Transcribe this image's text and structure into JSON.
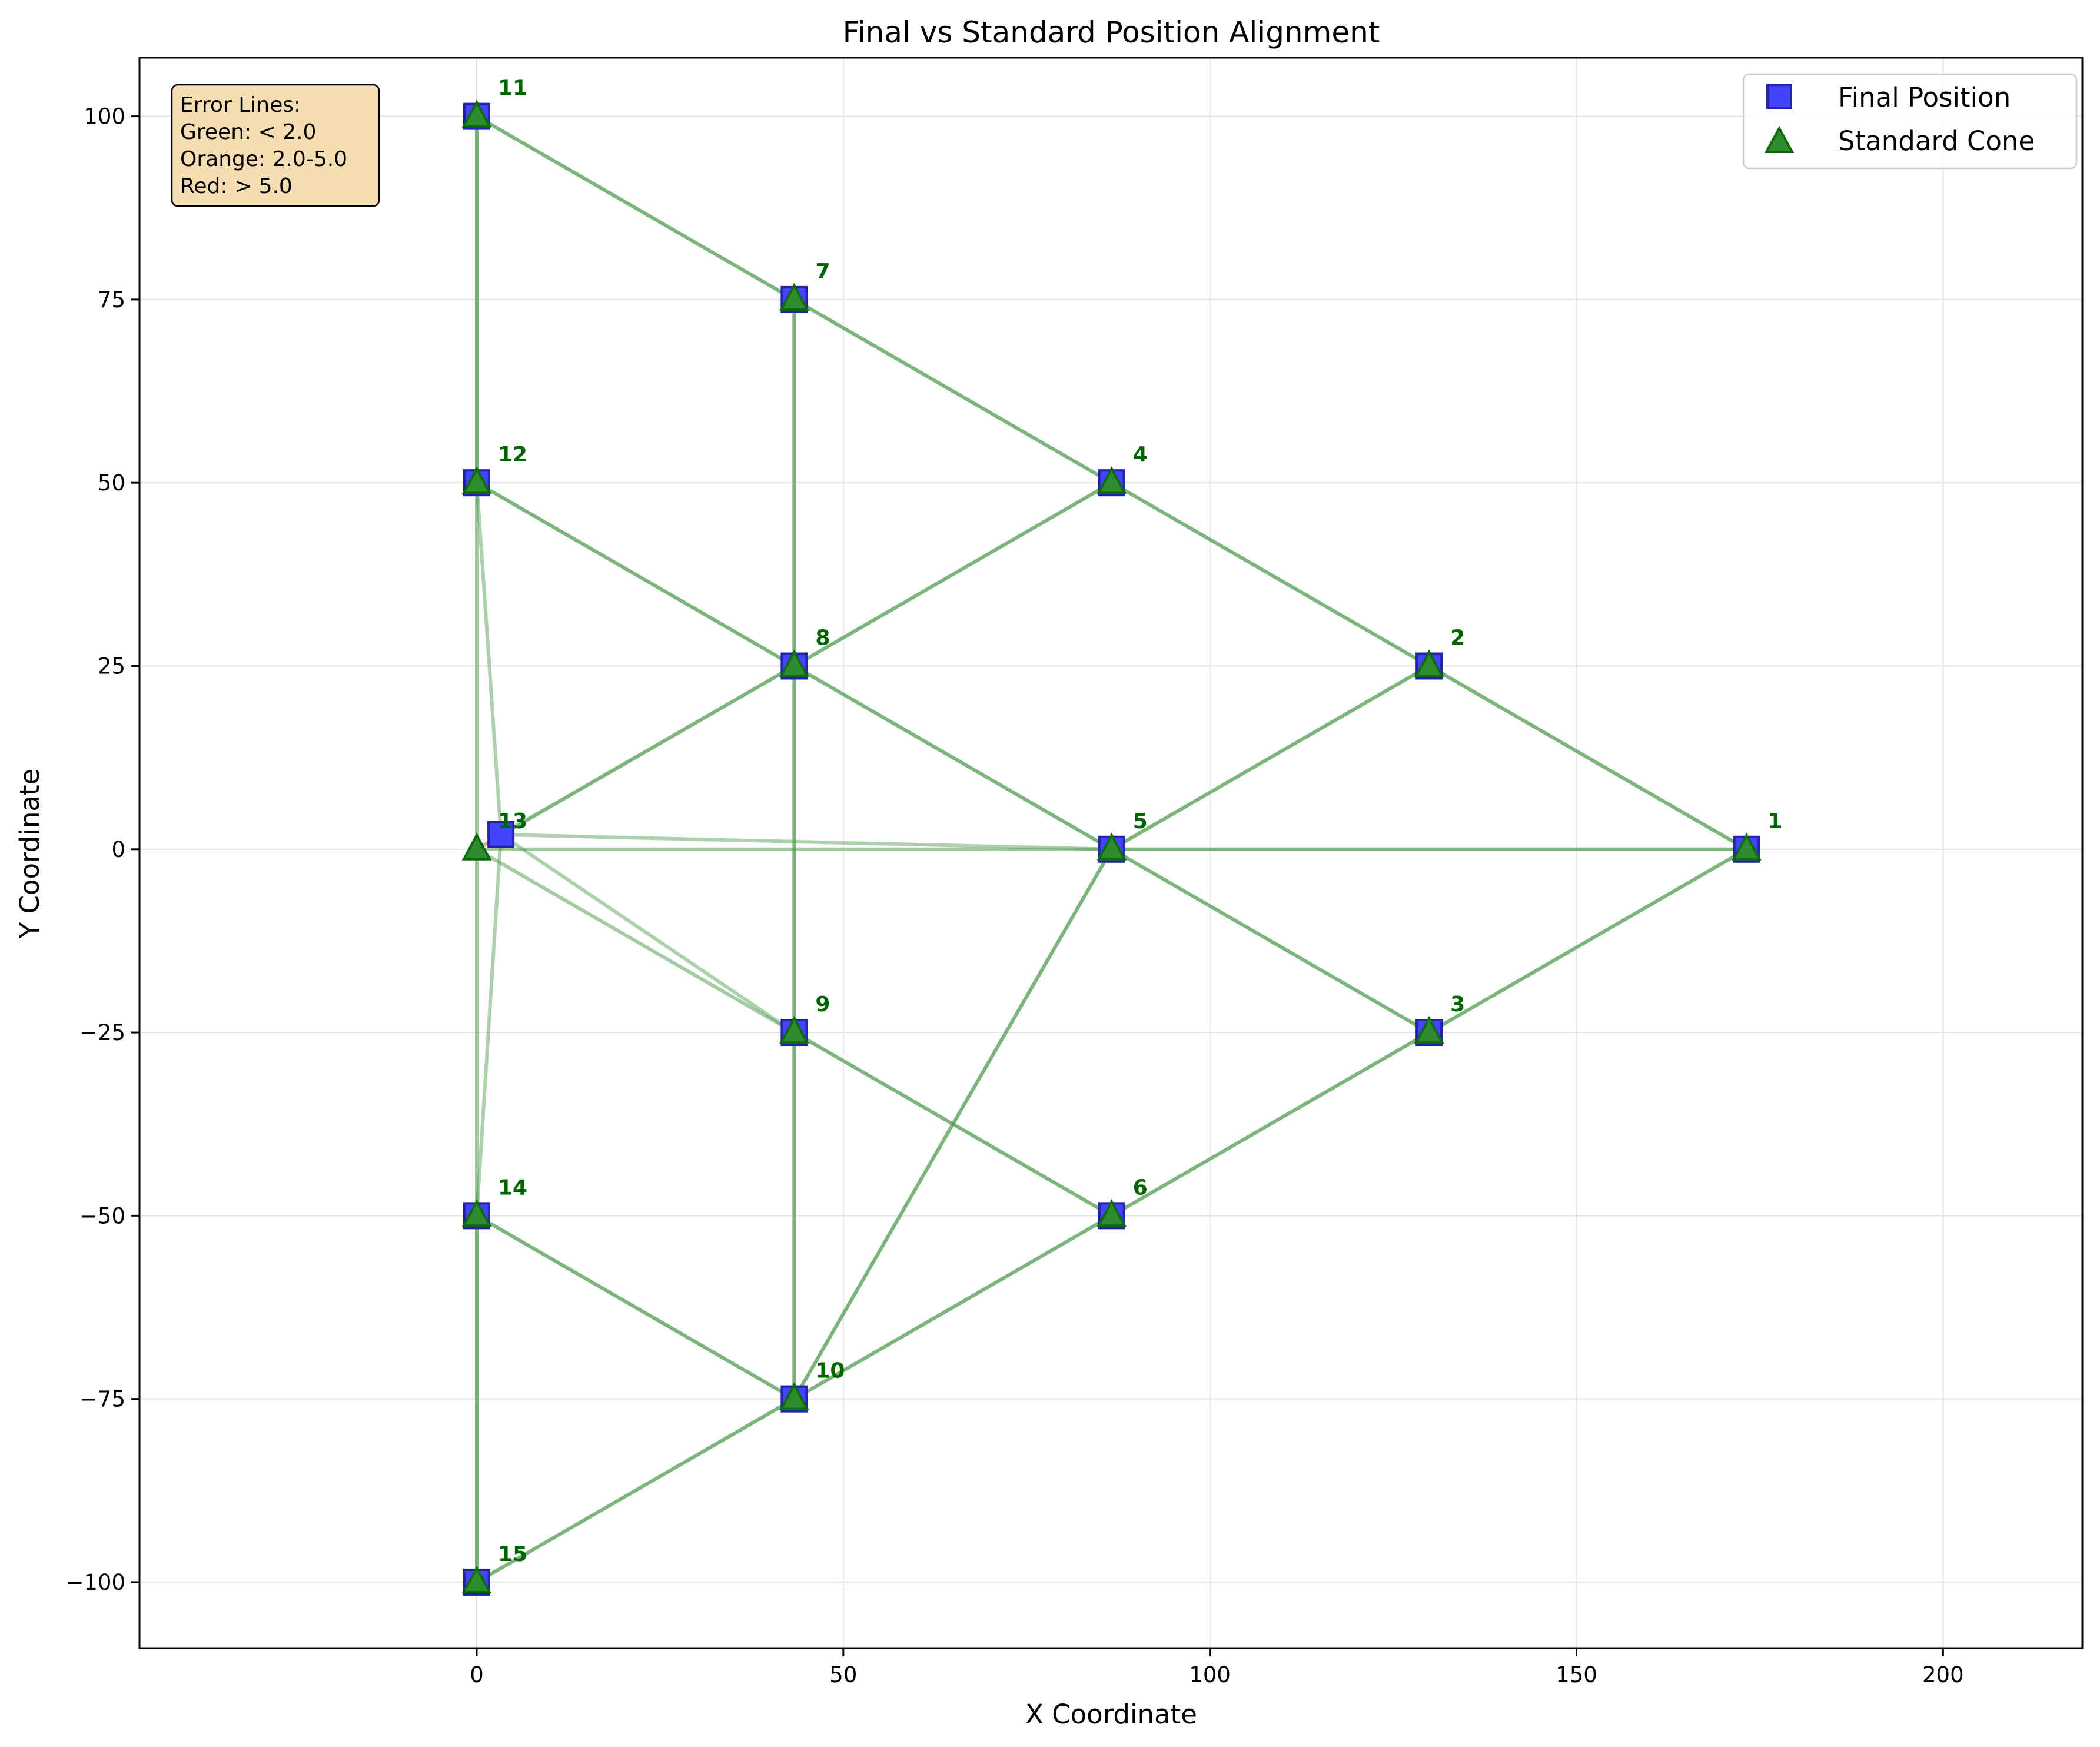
{
  "chart_data": {
    "type": "scatter",
    "title": "Final vs Standard Position Alignment",
    "xlabel": "X Coordinate",
    "ylabel": "Y Coordinate",
    "xlim": [
      -46,
      219
    ],
    "ylim": [
      -109,
      108
    ],
    "xticks": [
      0,
      50,
      100,
      150,
      200
    ],
    "yticks": [
      -100,
      -75,
      -50,
      -25,
      0,
      25,
      50,
      75,
      100
    ],
    "grid": true,
    "legend_position": "top-right",
    "series": [
      {
        "name": "Final Position",
        "marker": "square",
        "color": "#0000ff"
      },
      {
        "name": "Standard Cone",
        "marker": "triangle",
        "color": "#1e7b1e"
      }
    ],
    "points": [
      {
        "id": "1",
        "final": [
          173.2,
          0
        ],
        "standard": [
          173.2,
          0
        ]
      },
      {
        "id": "2",
        "final": [
          129.9,
          25
        ],
        "standard": [
          129.9,
          25
        ]
      },
      {
        "id": "3",
        "final": [
          129.9,
          -25
        ],
        "standard": [
          129.9,
          -25
        ]
      },
      {
        "id": "4",
        "final": [
          86.6,
          50
        ],
        "standard": [
          86.6,
          50
        ]
      },
      {
        "id": "5",
        "final": [
          86.6,
          0
        ],
        "standard": [
          86.6,
          0
        ]
      },
      {
        "id": "6",
        "final": [
          86.6,
          -50
        ],
        "standard": [
          86.6,
          -50
        ]
      },
      {
        "id": "7",
        "final": [
          43.3,
          75
        ],
        "standard": [
          43.3,
          75
        ]
      },
      {
        "id": "8",
        "final": [
          43.3,
          25
        ],
        "standard": [
          43.3,
          25
        ]
      },
      {
        "id": "9",
        "final": [
          43.3,
          -25
        ],
        "standard": [
          43.3,
          -25
        ]
      },
      {
        "id": "10",
        "final": [
          43.3,
          -75
        ],
        "standard": [
          43.3,
          -75
        ]
      },
      {
        "id": "11",
        "final": [
          0,
          100
        ],
        "standard": [
          0,
          100
        ]
      },
      {
        "id": "12",
        "final": [
          0,
          50
        ],
        "standard": [
          0,
          50
        ]
      },
      {
        "id": "13",
        "final": [
          3.3,
          2
        ],
        "standard": [
          0,
          0
        ]
      },
      {
        "id": "14",
        "final": [
          0,
          -50
        ],
        "standard": [
          0,
          -50
        ]
      },
      {
        "id": "15",
        "final": [
          0,
          -100
        ],
        "standard": [
          0,
          -100
        ]
      }
    ],
    "edges": [
      [
        "11",
        "7"
      ],
      [
        "7",
        "4"
      ],
      [
        "4",
        "2"
      ],
      [
        "2",
        "1"
      ],
      [
        "12",
        "8"
      ],
      [
        "8",
        "5"
      ],
      [
        "5",
        "3"
      ],
      [
        "8",
        "4"
      ],
      [
        "5",
        "2"
      ],
      [
        "13",
        "8"
      ],
      [
        "13",
        "9"
      ],
      [
        "9",
        "6"
      ],
      [
        "6",
        "3"
      ],
      [
        "3",
        "1"
      ],
      [
        "5",
        "1"
      ],
      [
        "13",
        "5"
      ],
      [
        "14",
        "10"
      ],
      [
        "10",
        "6"
      ],
      [
        "10",
        "5"
      ],
      [
        "15",
        "10"
      ],
      [
        "11",
        "12"
      ],
      [
        "12",
        "13"
      ],
      [
        "13",
        "14"
      ],
      [
        "14",
        "15"
      ],
      [
        "7",
        "8"
      ],
      [
        "8",
        "9"
      ],
      [
        "9",
        "10"
      ]
    ],
    "legend_note": [
      "Error Lines:",
      "Green: < 2.0",
      "Orange: 2.0-5.0",
      "Red: > 5.0"
    ]
  },
  "colors": {
    "edge": "#4a9a4a",
    "final_fill": "#4444ff",
    "final_edge": "#2222aa",
    "standard_fill": "#2e8b2e",
    "standard_edge": "#0d6b0d",
    "point_label": "#006400",
    "error_line": "#e8a0a0",
    "note_bg": "#f5deb3",
    "grid": "#e2e2e2"
  }
}
